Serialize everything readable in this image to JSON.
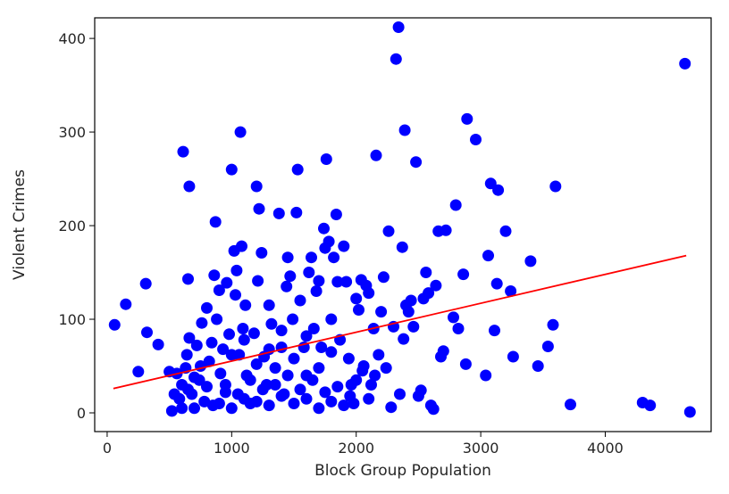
{
  "chart_data": {
    "type": "scatter",
    "xlabel": "Block Group Population",
    "ylabel": "Violent Crimes",
    "xlim": [
      -100,
      4850
    ],
    "ylim": [
      -20,
      422
    ],
    "xticks": [
      0,
      1000,
      2000,
      3000,
      4000
    ],
    "yticks": [
      0,
      100,
      200,
      300,
      400
    ],
    "grid": false,
    "colors": {
      "points": "#0000ff",
      "fit_line": "#ff0000",
      "axes": "#000000"
    },
    "series": [
      {
        "type": "scatter",
        "points": [
          [
            60,
            94
          ],
          [
            150,
            116
          ],
          [
            250,
            44
          ],
          [
            310,
            138
          ],
          [
            320,
            86
          ],
          [
            410,
            73
          ],
          [
            500,
            44
          ],
          [
            520,
            2
          ],
          [
            540,
            20
          ],
          [
            560,
            42
          ],
          [
            580,
            15
          ],
          [
            600,
            30
          ],
          [
            610,
            279
          ],
          [
            630,
            48
          ],
          [
            650,
            143
          ],
          [
            660,
            242
          ],
          [
            640,
            62
          ],
          [
            660,
            80
          ],
          [
            680,
            20
          ],
          [
            700,
            5
          ],
          [
            720,
            72
          ],
          [
            740,
            35
          ],
          [
            760,
            96
          ],
          [
            780,
            12
          ],
          [
            800,
            112
          ],
          [
            820,
            55
          ],
          [
            840,
            75
          ],
          [
            860,
            147
          ],
          [
            870,
            204
          ],
          [
            880,
            100
          ],
          [
            900,
            131
          ],
          [
            910,
            42
          ],
          [
            930,
            68
          ],
          [
            950,
            22
          ],
          [
            960,
            139
          ],
          [
            980,
            84
          ],
          [
            1000,
            260
          ],
          [
            1020,
            173
          ],
          [
            1030,
            126
          ],
          [
            1040,
            152
          ],
          [
            1060,
            62
          ],
          [
            1070,
            300
          ],
          [
            1080,
            178
          ],
          [
            1090,
            90
          ],
          [
            1110,
            115
          ],
          [
            1120,
            40
          ],
          [
            1150,
            10
          ],
          [
            1180,
            85
          ],
          [
            1200,
            242
          ],
          [
            1210,
            141
          ],
          [
            1220,
            218
          ],
          [
            1240,
            171
          ],
          [
            1260,
            60
          ],
          [
            1280,
            30
          ],
          [
            1300,
            115
          ],
          [
            1320,
            95
          ],
          [
            1350,
            48
          ],
          [
            1380,
            213
          ],
          [
            1400,
            70
          ],
          [
            1420,
            20
          ],
          [
            1440,
            135
          ],
          [
            1450,
            166
          ],
          [
            1470,
            146
          ],
          [
            1490,
            100
          ],
          [
            1520,
            214
          ],
          [
            1530,
            260
          ],
          [
            1550,
            120
          ],
          [
            1580,
            70
          ],
          [
            1600,
            40
          ],
          [
            1620,
            150
          ],
          [
            1640,
            166
          ],
          [
            1660,
            90
          ],
          [
            1680,
            130
          ],
          [
            1700,
            141
          ],
          [
            1720,
            70
          ],
          [
            1740,
            197
          ],
          [
            1750,
            176
          ],
          [
            1760,
            271
          ],
          [
            1780,
            183
          ],
          [
            1800,
            100
          ],
          [
            1820,
            166
          ],
          [
            1840,
            212
          ],
          [
            1850,
            140
          ],
          [
            1870,
            78
          ],
          [
            1900,
            178
          ],
          [
            1920,
            140
          ],
          [
            1940,
            58
          ],
          [
            1960,
            30
          ],
          [
            1980,
            10
          ],
          [
            2000,
            122
          ],
          [
            2020,
            110
          ],
          [
            2040,
            142
          ],
          [
            2060,
            50
          ],
          [
            2080,
            136
          ],
          [
            2100,
            128
          ],
          [
            2120,
            30
          ],
          [
            2140,
            90
          ],
          [
            2160,
            275
          ],
          [
            2180,
            62
          ],
          [
            2200,
            108
          ],
          [
            2220,
            145
          ],
          [
            2240,
            48
          ],
          [
            2260,
            194
          ],
          [
            2280,
            6
          ],
          [
            2300,
            92
          ],
          [
            2320,
            378
          ],
          [
            2340,
            412
          ],
          [
            2350,
            20
          ],
          [
            2370,
            177
          ],
          [
            2380,
            79
          ],
          [
            2390,
            302
          ],
          [
            2400,
            115
          ],
          [
            2420,
            108
          ],
          [
            2440,
            120
          ],
          [
            2460,
            92
          ],
          [
            2480,
            268
          ],
          [
            2500,
            18
          ],
          [
            2520,
            24
          ],
          [
            2540,
            122
          ],
          [
            2560,
            150
          ],
          [
            2580,
            128
          ],
          [
            2600,
            8
          ],
          [
            2620,
            4
          ],
          [
            2640,
            136
          ],
          [
            2660,
            194
          ],
          [
            2680,
            60
          ],
          [
            2700,
            66
          ],
          [
            2720,
            195
          ],
          [
            2780,
            102
          ],
          [
            2800,
            222
          ],
          [
            2820,
            90
          ],
          [
            2860,
            148
          ],
          [
            2880,
            52
          ],
          [
            2890,
            314
          ],
          [
            2960,
            292
          ],
          [
            3040,
            40
          ],
          [
            3060,
            168
          ],
          [
            3080,
            245
          ],
          [
            3110,
            88
          ],
          [
            3130,
            138
          ],
          [
            3140,
            238
          ],
          [
            3200,
            194
          ],
          [
            3240,
            130
          ],
          [
            3260,
            60
          ],
          [
            3400,
            162
          ],
          [
            3460,
            50
          ],
          [
            3540,
            71
          ],
          [
            3580,
            94
          ],
          [
            3600,
            242
          ],
          [
            3720,
            9
          ],
          [
            4300,
            11
          ],
          [
            4360,
            8
          ],
          [
            4640,
            373
          ],
          [
            4680,
            1
          ],
          [
            900,
            10
          ],
          [
            950,
            30
          ],
          [
            1000,
            5
          ],
          [
            1050,
            20
          ],
          [
            1100,
            15
          ],
          [
            1150,
            35
          ],
          [
            1200,
            12
          ],
          [
            1250,
            25
          ],
          [
            1300,
            8
          ],
          [
            1350,
            30
          ],
          [
            1400,
            18
          ],
          [
            1450,
            40
          ],
          [
            1500,
            10
          ],
          [
            1550,
            25
          ],
          [
            1600,
            15
          ],
          [
            1650,
            35
          ],
          [
            1700,
            5
          ],
          [
            1750,
            22
          ],
          [
            1800,
            12
          ],
          [
            1850,
            28
          ],
          [
            1900,
            8
          ],
          [
            1950,
            18
          ],
          [
            2000,
            35
          ],
          [
            2050,
            45
          ],
          [
            2100,
            15
          ],
          [
            2150,
            40
          ],
          [
            600,
            5
          ],
          [
            650,
            25
          ],
          [
            700,
            38
          ],
          [
            750,
            50
          ],
          [
            800,
            28
          ],
          [
            850,
            8
          ],
          [
            1000,
            62
          ],
          [
            1100,
            78
          ],
          [
            1200,
            52
          ],
          [
            1300,
            68
          ],
          [
            1400,
            88
          ],
          [
            1500,
            58
          ],
          [
            1600,
            82
          ],
          [
            1700,
            48
          ],
          [
            1800,
            65
          ]
        ]
      },
      {
        "type": "line",
        "points": [
          [
            50,
            26
          ],
          [
            4650,
            168
          ]
        ]
      }
    ]
  }
}
